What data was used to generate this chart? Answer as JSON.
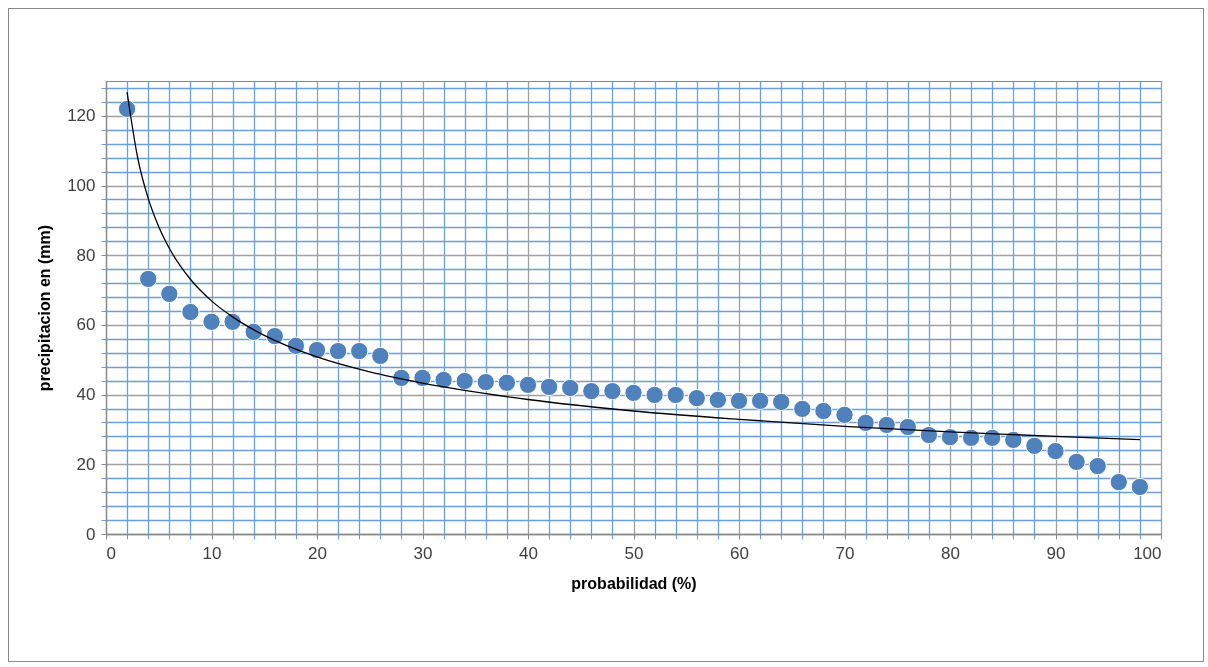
{
  "chart_data": {
    "type": "scatter",
    "xlabel": "probabilidad  (%)",
    "ylabel": "precipitacion en (mm)",
    "xlim": [
      0,
      100
    ],
    "xticks": [
      0,
      {
        "value": 2,
        "label": null
      },
      {
        "value": 4,
        "label": null
      },
      {
        "value": 6,
        "label": null
      },
      {
        "value": 8,
        "label": null
      },
      10,
      {
        "value": 12,
        "label": null
      },
      {
        "value": 14,
        "label": null
      },
      {
        "value": 16,
        "label": null
      },
      {
        "value": 18,
        "label": null
      },
      20,
      {
        "value": 22,
        "label": null
      },
      {
        "value": 24,
        "label": null
      },
      {
        "value": 26,
        "label": null
      },
      {
        "value": 28,
        "label": null
      },
      30,
      {
        "value": 32,
        "label": null
      },
      {
        "value": 34,
        "label": null
      },
      {
        "value": 36,
        "label": null
      },
      {
        "value": 38,
        "label": null
      },
      40,
      {
        "value": 42,
        "label": null
      },
      {
        "value": 44,
        "label": null
      },
      {
        "value": 46,
        "label": null
      },
      {
        "value": 48,
        "label": null
      },
      50,
      {
        "value": 52,
        "label": null
      },
      {
        "value": 54,
        "label": null
      },
      {
        "value": 56,
        "label": null
      },
      {
        "value": 58,
        "label": null
      },
      60,
      {
        "value": 62,
        "label": null
      },
      {
        "value": 64,
        "label": null
      },
      {
        "value": 66,
        "label": null
      },
      {
        "value": 68,
        "label": null
      },
      70,
      {
        "value": 72,
        "label": null
      },
      {
        "value": 74,
        "label": null
      },
      {
        "value": 76,
        "label": null
      },
      {
        "value": 78,
        "label": null
      },
      80,
      {
        "value": 82,
        "label": null
      },
      {
        "value": 84,
        "label": null
      },
      {
        "value": 86,
        "label": null
      },
      {
        "value": 88,
        "label": null
      },
      90,
      {
        "value": 92,
        "label": null
      },
      {
        "value": 94,
        "label": null
      },
      {
        "value": 96,
        "label": null
      },
      {
        "value": 98,
        "label": null
      },
      100
    ],
    "ylim": [
      0,
      130
    ],
    "yticks": [
      0,
      {
        "value": 4,
        "label": null
      },
      {
        "value": 8,
        "label": null
      },
      {
        "value": 12,
        "label": null
      },
      {
        "value": 16,
        "label": null
      },
      20,
      {
        "value": 24,
        "label": null
      },
      {
        "value": 28,
        "label": null
      },
      {
        "value": 32,
        "label": null
      },
      {
        "value": 36,
        "label": null
      },
      40,
      {
        "value": 44,
        "label": null
      },
      {
        "value": 48,
        "label": null
      },
      {
        "value": 52,
        "label": null
      },
      {
        "value": 56,
        "label": null
      },
      60,
      {
        "value": 64,
        "label": null
      },
      {
        "value": 68,
        "label": null
      },
      {
        "value": 72,
        "label": null
      },
      {
        "value": 76,
        "label": null
      },
      80,
      {
        "value": 84,
        "label": null
      },
      {
        "value": 88,
        "label": null
      },
      {
        "value": 92,
        "label": null
      },
      {
        "value": 96,
        "label": null
      },
      100,
      {
        "value": 104,
        "label": null
      },
      {
        "value": 108,
        "label": null
      },
      {
        "value": 112,
        "label": null
      },
      {
        "value": 116,
        "label": null
      },
      120,
      {
        "value": 124,
        "label": null
      },
      {
        "value": 128,
        "label": null
      }
    ],
    "grid": true,
    "marker": "circle",
    "series": [
      {
        "color": "#4f81bd",
        "x": [
          2,
          4,
          6,
          8,
          10,
          12,
          14,
          16,
          18,
          20,
          22,
          24,
          26,
          28,
          30,
          32,
          34,
          36,
          38,
          40,
          42,
          44,
          46,
          48,
          50,
          52,
          54,
          56,
          58,
          60,
          62,
          64,
          66,
          68,
          70,
          72,
          74,
          76,
          78,
          80,
          82,
          84,
          86,
          88,
          90,
          92,
          94,
          96,
          98
        ],
        "values": [
          122,
          73.2,
          68.9,
          63.7,
          60.9,
          60.9,
          58,
          56.8,
          54,
          52.8,
          52.5,
          52.5,
          51.1,
          44.8,
          44.8,
          44.2,
          43.9,
          43.6,
          43.4,
          42.8,
          42.2,
          41.9,
          41,
          41,
          40.5,
          39.9,
          39.9,
          39,
          38.5,
          38.2,
          38.2,
          37.9,
          35.9,
          35.3,
          34.2,
          31.9,
          31.3,
          30.7,
          28.4,
          27.8,
          27.6,
          27.6,
          27,
          25.3,
          23.8,
          20.7,
          19.5,
          14.9,
          13.5
        ]
      },
      {
        "type": "line",
        "color": "#000000",
        "line_style": "solid",
        "marker": "none",
        "x": [
          2,
          3,
          4,
          5,
          6,
          8,
          10,
          12,
          15,
          20,
          25,
          30,
          40,
          50,
          60,
          70,
          80,
          90,
          98
        ],
        "values": [
          126.8,
          108,
          96.3,
          88.2,
          82,
          73.1,
          66.9,
          62.3,
          57,
          50.8,
          46.5,
          43.3,
          38.6,
          35.3,
          32.9,
          30.9,
          29.3,
          28,
          27.1
        ]
      }
    ]
  }
}
